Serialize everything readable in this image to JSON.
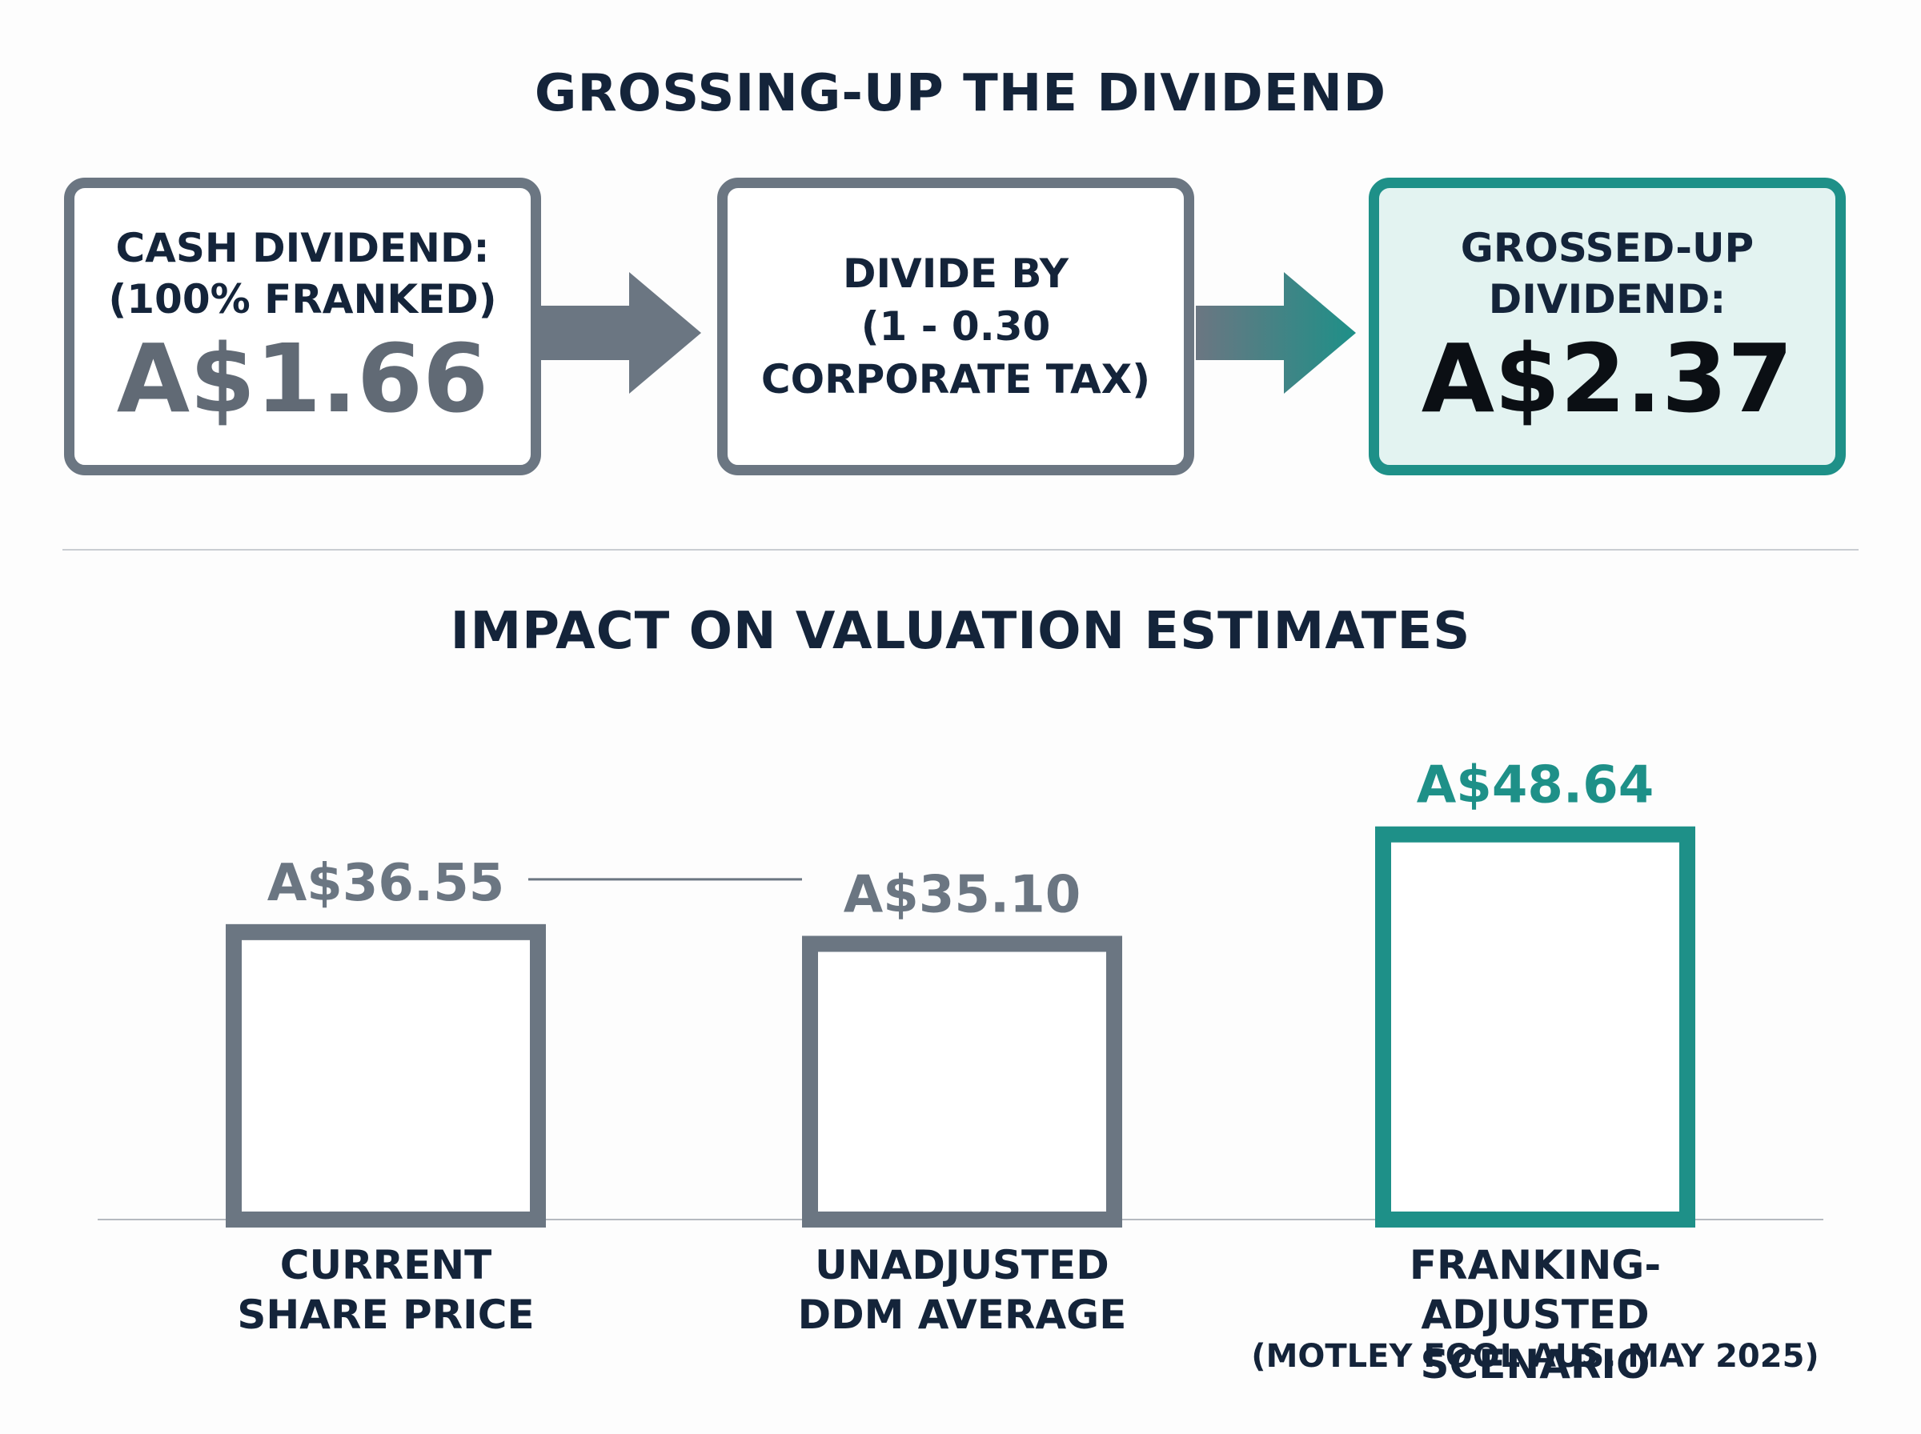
{
  "top": {
    "title": "GROSSING-UP THE DIVIDEND",
    "cash_box": {
      "label": "CASH DIVIDEND:\n(100% FRANKED)",
      "value": "A$1.66"
    },
    "divide_box": {
      "label": "DIVIDE BY\n(1 - 0.30\nCORPORATE TAX)"
    },
    "grossed_box": {
      "label": "GROSSED-UP\nDIVIDEND:",
      "value": "A$2.37"
    }
  },
  "bottom": {
    "title": "IMPACT ON VALUATION ESTIMATES",
    "source_note": "(MOTLEY FOOL AUS, MAY 2025)"
  },
  "colors": {
    "neutral": "#6b7682",
    "accent": "#1e9088",
    "text": "#14243a"
  },
  "chart_data": {
    "type": "bar",
    "categories": [
      "CURRENT\nSHARE PRICE",
      "UNADJUSTED\nDDM AVERAGE",
      "FRANKING-ADJUSTED\nSCENARIO"
    ],
    "values": [
      36.55,
      35.1,
      48.64
    ],
    "value_labels": [
      "A$36.55",
      "A$35.10",
      "A$48.64"
    ],
    "highlight_index": 2,
    "bar_style": "outline",
    "grid": false
  }
}
